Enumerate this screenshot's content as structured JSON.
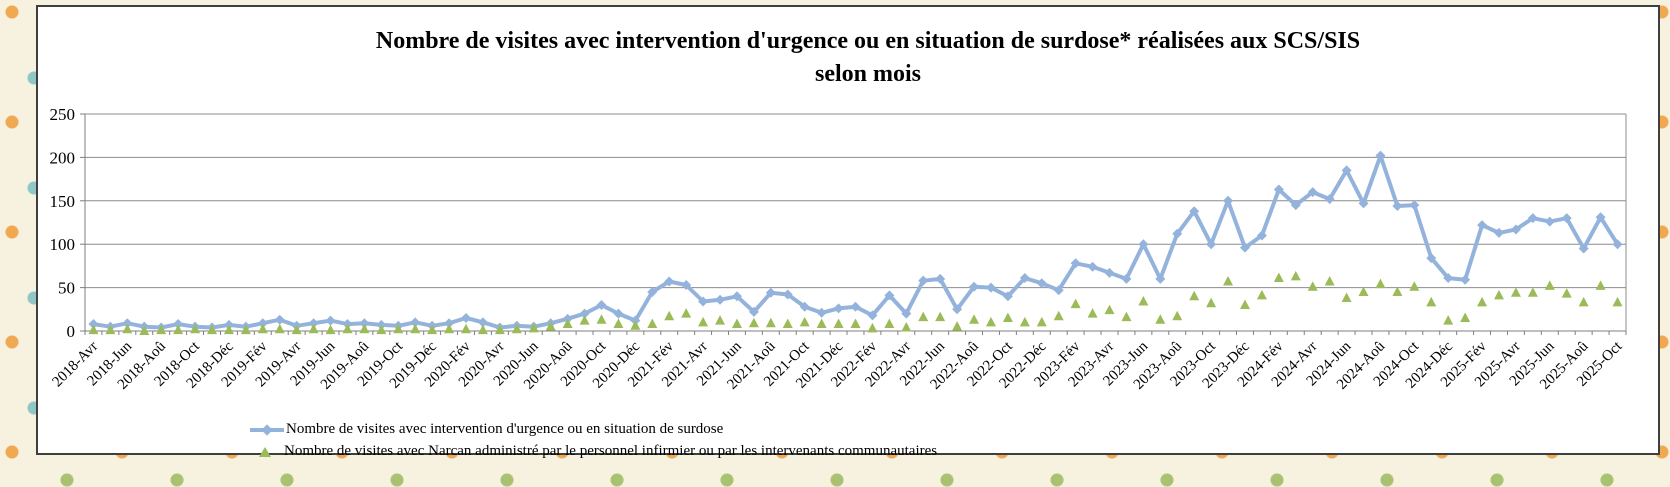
{
  "chart": {
    "title_line1": "Nombre de visites avec intervention d'urgence ou en situation de surdose* réalisées aux SCS/SIS",
    "title_line2": "selon mois"
  },
  "colors": {
    "series1": "#94b3dc",
    "series2": "#9bbb59",
    "gridline": "#8c8c8c",
    "axis": "#7f7f7f",
    "chart_background": "#ffffff",
    "page_background": "#f7f1e0",
    "chart_border": "#3f3f3f",
    "text": "#000000"
  },
  "chart_data": {
    "type": "line",
    "title": "Nombre de visites avec intervention d'urgence ou en situation de surdose* réalisées aux SCS/SIS selon mois",
    "ylim": [
      0,
      250
    ],
    "ytick_step": 50,
    "grid": true,
    "legend_position": "bottom",
    "x_label_every": 2,
    "categories": [
      "2018-Avr",
      "2018-Mai",
      "2018-Jun",
      "2018-Jul",
      "2018-Aoû",
      "2018-Sep",
      "2018-Oct",
      "2018-Nov",
      "2018-Déc",
      "2019-Jan",
      "2019-Fév",
      "2019-Mar",
      "2019-Avr",
      "2019-Mai",
      "2019-Jun",
      "2019-Jul",
      "2019-Aoû",
      "2019-Sep",
      "2019-Oct",
      "2019-Nov",
      "2019-Déc",
      "2020-Jan",
      "2020-Fév",
      "2020-Mar",
      "2020-Avr",
      "2020-Mai",
      "2020-Jun",
      "2020-Jul",
      "2020-Aoû",
      "2020-Sep",
      "2020-Oct",
      "2020-Nov",
      "2020-Déc",
      "2021-Jan",
      "2021-Fév",
      "2021-Mar",
      "2021-Avr",
      "2021-Mai",
      "2021-Jun",
      "2021-Jul",
      "2021-Aoû",
      "2021-Sep",
      "2021-Oct",
      "2021-Nov",
      "2021-Déc",
      "2022-Jan",
      "2022-Fév",
      "2022-Mar",
      "2022-Avr",
      "2022-Mai",
      "2022-Jun",
      "2022-Jul",
      "2022-Aoû",
      "2022-Sep",
      "2022-Oct",
      "2022-Nov",
      "2022-Déc",
      "2023-Jan",
      "2023-Fév",
      "2023-Mar",
      "2023-Avr",
      "2023-Mai",
      "2023-Jun",
      "2023-Jul",
      "2023-Aoû",
      "2023-Sep",
      "2023-Oct",
      "2023-Nov",
      "2023-Déc",
      "2024-Jan",
      "2024-Fév",
      "2024-Mar",
      "2024-Avr",
      "2024-Mai",
      "2024-Jun",
      "2024-Jul",
      "2024-Aoû",
      "2024-Sep",
      "2024-Oct",
      "2024-Nov",
      "2024-Déc",
      "2025-Jan",
      "2025-Fév",
      "2025-Mar",
      "2025-Avr",
      "2025-Mai",
      "2025-Jun",
      "2025-Jul",
      "2025-Aoû",
      "2025-Sep",
      "2025-Oct"
    ],
    "series": [
      {
        "name": "Nombre de visites avec intervention d'urgence ou en situation de surdose",
        "marker": "diamond",
        "color": "#94b3dc",
        "values": [
          8,
          5,
          9,
          5,
          4,
          8,
          5,
          4,
          7,
          5,
          9,
          13,
          6,
          9,
          12,
          8,
          9,
          7,
          6,
          10,
          6,
          9,
          15,
          10,
          4,
          6,
          5,
          9,
          14,
          20,
          30,
          20,
          12,
          45,
          57,
          53,
          34,
          36,
          40,
          22,
          44,
          42,
          28,
          21,
          26,
          28,
          18,
          41,
          20,
          58,
          60,
          25,
          51,
          50,
          40,
          61,
          55,
          47,
          78,
          74,
          67,
          60,
          100,
          60,
          112,
          138,
          100,
          150,
          96,
          110,
          163,
          145,
          160,
          152,
          185,
          147,
          202,
          144,
          145,
          84,
          61,
          59,
          122,
          113,
          117,
          130,
          126,
          130,
          95,
          131,
          100
        ]
      },
      {
        "name": "Nombre de visites avec Narcan administré par le personnel infirmier ou par les intervenants communautaires",
        "marker": "triangle",
        "color": "#9bbb59",
        "values": [
          1,
          1,
          2,
          0,
          1,
          1,
          2,
          1,
          1,
          1,
          2,
          2,
          1,
          2,
          1,
          2,
          2,
          1,
          2,
          2,
          1,
          2,
          2,
          1,
          1,
          2,
          3,
          5,
          8,
          12,
          13,
          8,
          6,
          8,
          17,
          20,
          10,
          12,
          8,
          9,
          9,
          8,
          10,
          8,
          8,
          8,
          3,
          8,
          4,
          16,
          16,
          5,
          13,
          10,
          15,
          10,
          10,
          17,
          31,
          20,
          24,
          16,
          34,
          13,
          17,
          40,
          32,
          57,
          30,
          41,
          61,
          63,
          51,
          57,
          38,
          45,
          54,
          45,
          51,
          33,
          12,
          15,
          33,
          41,
          44,
          44,
          52,
          43,
          33,
          52,
          33
        ]
      }
    ]
  }
}
